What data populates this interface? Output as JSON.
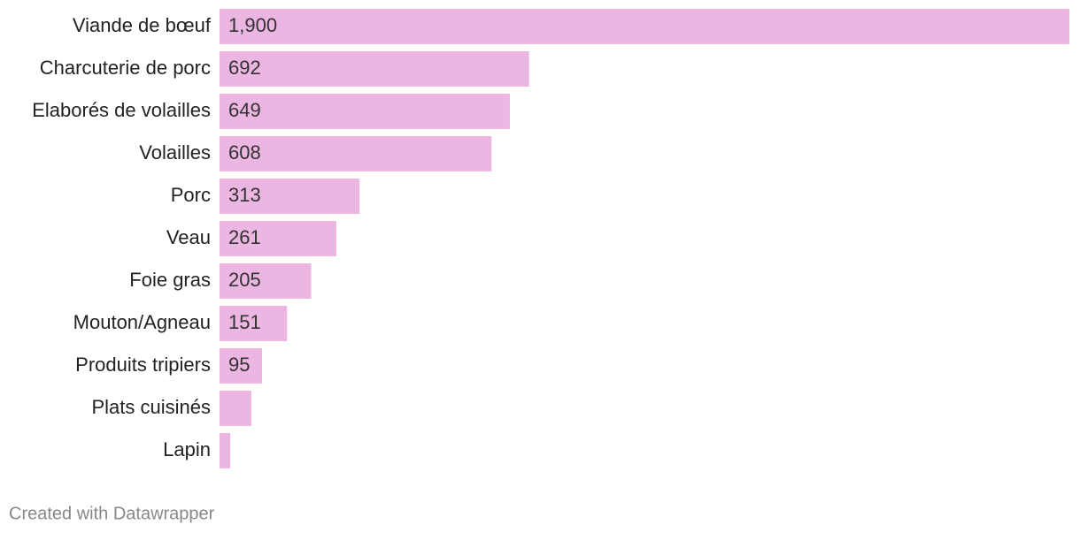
{
  "chart_data": {
    "type": "bar",
    "orientation": "horizontal",
    "categories": [
      "Viande de bœuf",
      "Charcuterie de porc",
      "Elaborés de volailles",
      "Volailles",
      "Porc",
      "Veau",
      "Foie gras",
      "Mouton/Agneau",
      "Produits tripiers",
      "Plats cuisinés",
      "Lapin"
    ],
    "values": [
      1900,
      692,
      649,
      608,
      313,
      261,
      205,
      151,
      95,
      71,
      24
    ],
    "value_labels": [
      "1,900",
      "692",
      "649",
      "608",
      "313",
      "261",
      "205",
      "151",
      "95",
      null,
      null
    ],
    "color": "#ebb6e2",
    "credit": "Created with Datawrapper"
  }
}
